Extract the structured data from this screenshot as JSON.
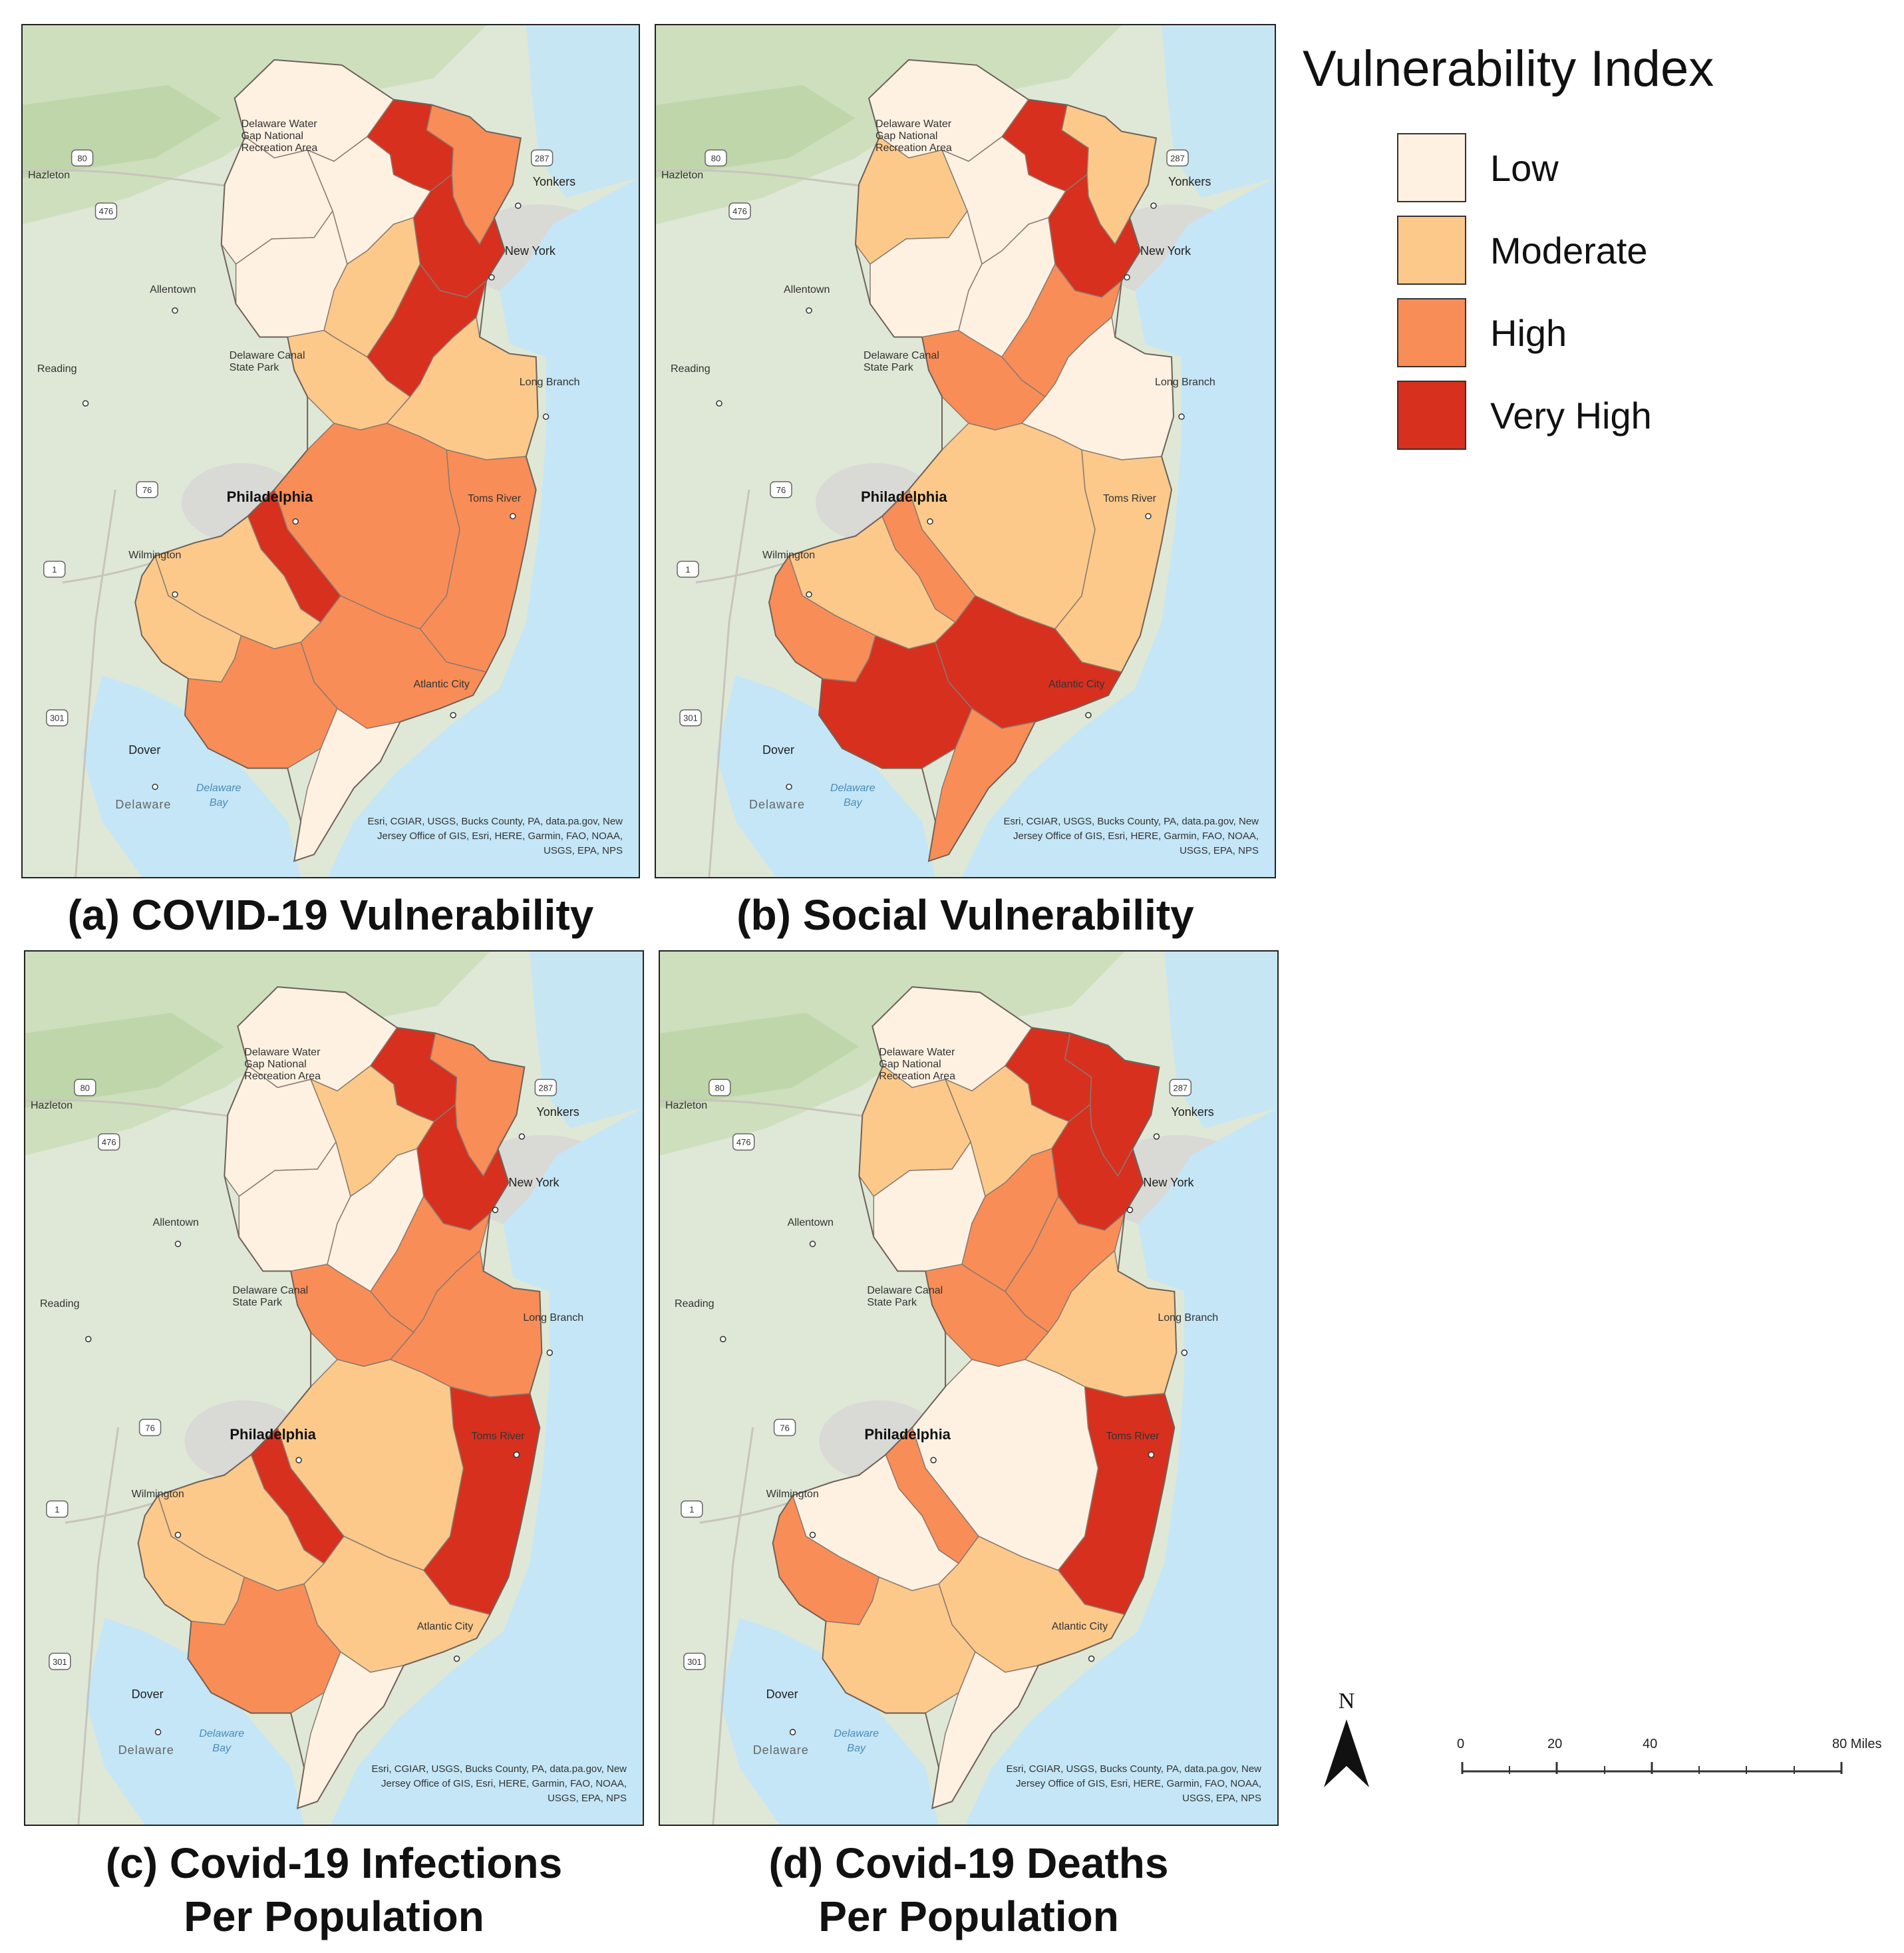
{
  "legend": {
    "title": "Vulnerability Index",
    "classes": [
      {
        "key": "low",
        "label": "Low",
        "color": "#fef1e1"
      },
      {
        "key": "moderate",
        "label": "Moderate",
        "color": "#fcc98a"
      },
      {
        "key": "high",
        "label": "High",
        "color": "#f98d57"
      },
      {
        "key": "very_high",
        "label": "Very High",
        "color": "#d7301f"
      }
    ]
  },
  "panels": [
    {
      "id": "a",
      "caption_lines": [
        "(a) COVID-19 Vulnerability"
      ],
      "counties": {
        "sussex": "low",
        "passaic": "very_high",
        "bergen": "high",
        "warren": "low",
        "morris": "low",
        "essex_hudson": "very_high",
        "hunterdon": "low",
        "somerset": "moderate",
        "middlesex_union": "very_high",
        "mercer": "moderate",
        "monmouth": "moderate",
        "burlington": "high",
        "ocean": "high",
        "camden": "very_high",
        "gloucester": "moderate",
        "salem": "moderate",
        "atlantic": "high",
        "cumberland": "high",
        "cape_may": "low"
      }
    },
    {
      "id": "b",
      "caption_lines": [
        "(b) Social Vulnerability"
      ],
      "counties": {
        "sussex": "low",
        "passaic": "very_high",
        "bergen": "moderate",
        "warren": "moderate",
        "morris": "low",
        "essex_hudson": "very_high",
        "hunterdon": "low",
        "somerset": "low",
        "middlesex_union": "high",
        "mercer": "high",
        "monmouth": "low",
        "burlington": "moderate",
        "ocean": "moderate",
        "camden": "high",
        "gloucester": "moderate",
        "salem": "high",
        "atlantic": "very_high",
        "cumberland": "very_high",
        "cape_may": "high"
      }
    },
    {
      "id": "c",
      "caption_lines": [
        "(c) Covid-19 Infections",
        "Per Population"
      ],
      "counties": {
        "sussex": "low",
        "passaic": "very_high",
        "bergen": "high",
        "warren": "low",
        "morris": "moderate",
        "essex_hudson": "very_high",
        "hunterdon": "low",
        "somerset": "low",
        "middlesex_union": "high",
        "mercer": "high",
        "monmouth": "high",
        "burlington": "moderate",
        "ocean": "very_high",
        "camden": "very_high",
        "gloucester": "moderate",
        "salem": "moderate",
        "atlantic": "moderate",
        "cumberland": "high",
        "cape_may": "low"
      }
    },
    {
      "id": "d",
      "caption_lines": [
        "(d) Covid-19 Deaths",
        "Per Population"
      ],
      "counties": {
        "sussex": "low",
        "passaic": "very_high",
        "bergen": "very_high",
        "warren": "moderate",
        "morris": "moderate",
        "essex_hudson": "very_high",
        "hunterdon": "low",
        "somerset": "high",
        "middlesex_union": "high",
        "mercer": "high",
        "monmouth": "moderate",
        "burlington": "low",
        "ocean": "very_high",
        "camden": "high",
        "gloucester": "low",
        "salem": "high",
        "atlantic": "moderate",
        "cumberland": "moderate",
        "cape_may": "low"
      }
    }
  ],
  "places": {
    "delaware_water_gap": [
      "Delaware Water",
      "Gap National",
      "Recreation Area"
    ],
    "hazleton": "Hazleton",
    "allentown": "Allentown",
    "reading": "Reading",
    "delaware_canal": [
      "Delaware Canal",
      "State Park"
    ],
    "yonkers": "Yonkers",
    "new_york": "New York",
    "long_branch": "Long Branch",
    "philadelphia": "Philadelphia",
    "toms_river": "Toms River",
    "wilmington": "Wilmington",
    "atlantic_city": "Atlantic City",
    "dover": "Dover",
    "delaware_bay": [
      "Delaware",
      "Bay"
    ],
    "delaware_state": "Delaware",
    "shields": [
      "80",
      "476",
      "287",
      "76",
      "1",
      "301"
    ]
  },
  "attribution": [
    "Esri, CGIAR, USGS, Bucks County, PA, data.pa.gov, New",
    "Jersey Office of GIS, Esri, HERE, Garmin, FAO, NOAA,",
    "USGS, EPA, NPS"
  ],
  "north_arrow": {
    "letter": "N"
  },
  "scale_bar": {
    "ticks": [
      "0",
      "20",
      "40",
      "80 Miles"
    ],
    "tick_values": [
      0,
      20,
      40,
      80
    ],
    "max": 80
  }
}
